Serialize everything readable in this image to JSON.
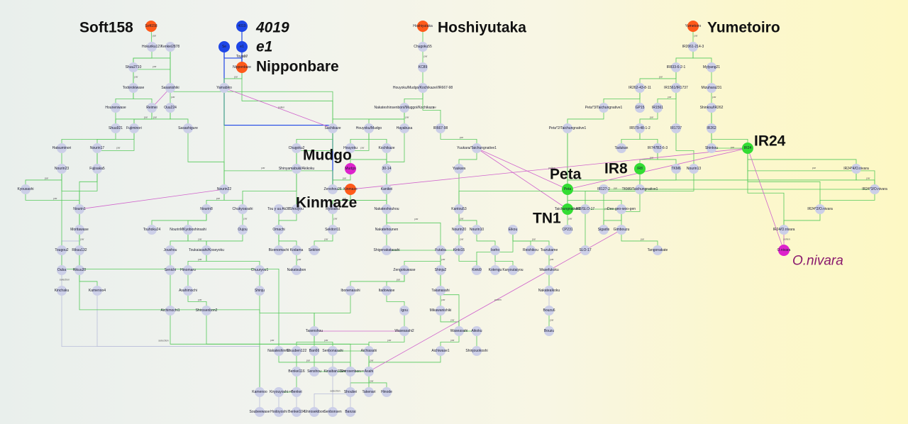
{
  "colors": {
    "parent": "#54c95a",
    "selection_mutation": "#b8bcd9",
    "pollen": "#d064cc",
    "highlight_orange": "#ff5a1a",
    "highlight_blue": "#1e46e6",
    "highlight_green": "#33dd33",
    "highlight_magenta": "#dd22cc",
    "node_default": "#cccfe8"
  },
  "big_labels": {
    "soft158": "Soft158",
    "v4019": "4019",
    "e1": "e1",
    "nipponbare": "Nipponbare",
    "hoshiyutaka": "Hoshiyutaka",
    "yumetoiro": "Yumetoiro",
    "mudgo": "Mudgo",
    "kinmaze": "Kinmaze",
    "peta": "Peta",
    "ir8": "IR8",
    "tn1": "TN1",
    "ir24": "IR24",
    "onivara": "O.nivara"
  },
  "nodes": [
    {
      "id": "Soft158",
      "label": "Soft158",
      "c": "orange"
    },
    {
      "id": "4019",
      "label": "4019",
      "c": "blue"
    },
    {
      "id": "e1",
      "label": "e1",
      "c": "blue"
    },
    {
      "id": "Se",
      "label": "Se",
      "c": "blue"
    },
    {
      "id": "Nipponbare",
      "label": "Nipponbare",
      "c": "orange"
    },
    {
      "id": "Toyo17",
      "label": "Toyo17",
      "c": "none"
    },
    {
      "id": "Hoshiyutaka",
      "label": "Hoshiyutaka",
      "c": "orange"
    },
    {
      "id": "Yumetoiro",
      "label": "Yumetoiro",
      "c": "orange"
    },
    {
      "id": "Hokuriku127",
      "label": "Hokuriku127"
    },
    {
      "id": "Kenkei2878",
      "label": "Kenkei2878"
    },
    {
      "id": "Shuu2710",
      "label": "Shuu2710"
    },
    {
      "id": "Todorokiwase",
      "label": "Todorokiwase"
    },
    {
      "id": "Sasanishiki",
      "label": "Sasanishiki"
    },
    {
      "id": "Hounenwase",
      "label": "Hounenwase"
    },
    {
      "id": "Reimei",
      "label": "Reimei"
    },
    {
      "id": "Ouu224",
      "label": "Ouu224"
    },
    {
      "id": "Shuu921",
      "label": "Shuu921"
    },
    {
      "id": "Fujiminori",
      "label": "Fujiminori"
    },
    {
      "id": "Sasashigure",
      "label": "Sasashigure"
    },
    {
      "id": "Yamabiko",
      "label": "Yamabiko"
    },
    {
      "id": "Hatsumi",
      "label": "Hatsuminori"
    },
    {
      "id": "Nourin17",
      "label": "Nourin17"
    },
    {
      "id": "Nourin23",
      "label": "Nourin23"
    },
    {
      "id": "Fujisaka5",
      "label": "Fujisaka5"
    },
    {
      "id": "Kyousashi",
      "label": "Kyousashi"
    },
    {
      "id": "Nourin1",
      "label": "Nourin1"
    },
    {
      "id": "Moritawase",
      "label": "Moritawase"
    },
    {
      "id": "Tougou2",
      "label": "Tougou2"
    },
    {
      "id": "Rikuu132",
      "label": "Rikuu132"
    },
    {
      "id": "Ouba",
      "label": "Ouba"
    },
    {
      "id": "Rikuu20",
      "label": "Rikuu20"
    },
    {
      "id": "Kinchaku",
      "label": "Kinchaku"
    },
    {
      "id": "Kamenoo4",
      "label": "Kamenoo4"
    },
    {
      "id": "Chugoku55",
      "label": "Chugoku55"
    },
    {
      "id": "KC89",
      "label": "KC89"
    },
    {
      "id": "HouyokuMK",
      "label": "Houyoku/Mudgo/Kochikaze//IR667-98"
    },
    {
      "id": "NakateMK",
      "label": "Nakateshinsenbon//Muggoi/Kochikaze"
    },
    {
      "id": "Sachikaze",
      "label": "Sachikaze"
    },
    {
      "id": "HouyokuMudgo",
      "label": "Houyoku/Mudgo"
    },
    {
      "id": "Hayabusa",
      "label": "Hayabusa"
    },
    {
      "id": "IR667",
      "label": "IR667-98"
    },
    {
      "id": "Chugoku2",
      "label": "Chugoku2"
    },
    {
      "id": "Houyoku",
      "label": "Houyoku"
    },
    {
      "id": "Kochikaze",
      "label": "Kochikaze"
    },
    {
      "id": "Mudgo",
      "label": "Mudgo",
      "c": "magenta"
    },
    {
      "id": "3014",
      "label": "30-14"
    },
    {
      "id": "Shinyamabuki",
      "label": "Shinyamabuki/Akikoku"
    },
    {
      "id": "Nourin22",
      "label": "Nourin22"
    },
    {
      "id": "Zenshou26",
      "label": "Zenshou26"
    },
    {
      "id": "Kinmaze",
      "label": "Kinmaze",
      "c": "orange"
    },
    {
      "id": "Kanikei",
      "label": "Kanikei"
    },
    {
      "id": "YuukaraT",
      "label": "Yuukara/Taichungnative1"
    },
    {
      "id": "Yuukara",
      "label": "Yuukara"
    },
    {
      "id": "Kantou53",
      "label": "Kantou53"
    },
    {
      "id": "Nourin8",
      "label": "Nourin8"
    },
    {
      "id": "Chukyoasahi",
      "label": "Chukyoasahi"
    },
    {
      "id": "TouyuuAk",
      "label": "Tou y uu Ak38"
    },
    {
      "id": "Shouyou",
      "label": "Shouyou"
    },
    {
      "id": "Ryosaku",
      "label": "Ryosaku"
    },
    {
      "id": "Nakateshouhou",
      "label": "Nakateshouhou"
    },
    {
      "id": "Touhoku24",
      "label": "Touhoku24"
    },
    {
      "id": "NourinMK",
      "label": "NourinMKyoboshinsahi"
    },
    {
      "id": "Oujou",
      "label": "Oujou"
    },
    {
      "id": "Omachi",
      "label": "Omachi"
    },
    {
      "id": "Sekitori11",
      "label": "Sekitori11"
    },
    {
      "id": "Nakatehounen",
      "label": "Nakatehounen"
    },
    {
      "id": "Nourin20",
      "label": "Nourin20"
    },
    {
      "id": "Nourin10",
      "label": "Nourin10"
    },
    {
      "id": "Eikou",
      "label": "Eikou"
    },
    {
      "id": "Bizenomachi",
      "label": "Bizenomachi"
    },
    {
      "id": "Kodama",
      "label": "Kodama"
    },
    {
      "id": "Sekitori",
      "label": "Sekitori"
    },
    {
      "id": "Shigenakatasahi",
      "label": "Shigenakatasahi"
    },
    {
      "id": "Futaba",
      "label": "Futaba"
    },
    {
      "id": "Kinki15",
      "label": "Kinki15"
    },
    {
      "id": "Iseho",
      "label": "Iseho"
    },
    {
      "id": "Reishikou",
      "label": "Reishikou"
    },
    {
      "id": "Tsurukame",
      "label": "Tsurukame"
    },
    {
      "id": "Joushou",
      "label": "Joushou"
    },
    {
      "id": "ToukaiK",
      "label": "Toukaiasahi/Koseyoku"
    },
    {
      "id": "Nakatsubon",
      "label": "Nakatsubon"
    },
    {
      "id": "Zengokuwase",
      "label": "Zengokuwase"
    },
    {
      "id": "Shinju2",
      "label": "Shinju2"
    },
    {
      "id": "Kinki9",
      "label": "Kinki9"
    },
    {
      "id": "Kotengu",
      "label": "Kotengu"
    },
    {
      "id": "Karyoutaiyou",
      "label": "Karyoutaiyou"
    },
    {
      "id": "Wasefukoku",
      "label": "Wasefukoku"
    },
    {
      "id": "Senichi",
      "label": "Senichi"
    },
    {
      "id": "Hinomaru",
      "label": "Hinomaru"
    },
    {
      "id": "Chuuryou1",
      "label": "Chuuryou1"
    },
    {
      "id": "Shinju",
      "label": "Shinju"
    },
    {
      "id": "Ibonenasahi",
      "label": "Ibonenasahi"
    },
    {
      "id": "Itadowase",
      "label": "Itadowase"
    },
    {
      "id": "Takanasahi",
      "label": "Takanasahi"
    },
    {
      "id": "Nakatealkoku",
      "label": "Nakatealkoku"
    },
    {
      "id": "Asahimochi",
      "label": "Asahimochi"
    },
    {
      "id": "Aichimochi1",
      "label": "Aichimochi1"
    },
    {
      "id": "Shirosenbon2",
      "label": "Shirosenbon2"
    },
    {
      "id": "Igou",
      "label": "Igou"
    },
    {
      "id": "Mikawanishiki",
      "label": "Mikawanishiki"
    },
    {
      "id": "Bouzu6",
      "label": "Bouzu6"
    },
    {
      "id": "Tasenshou",
      "label": "Tasenshou"
    },
    {
      "id": "Waseasahi2",
      "label": "Waseasahi2"
    },
    {
      "id": "Waseasahi",
      "label": "Waseasahi"
    },
    {
      "id": "Aikoku",
      "label": "Aikoku"
    },
    {
      "id": "Bouzu",
      "label": "Bouzu"
    },
    {
      "id": "Chuuben122",
      "label": "Chuuben122"
    },
    {
      "id": "Ban66",
      "label": "Ban66"
    },
    {
      "id": "Senbonasahi",
      "label": "Senbonasahi"
    },
    {
      "id": "Shinjouokoshi",
      "label": "Shinjouokoshi"
    },
    {
      "id": "Nakateshinriki",
      "label": "Nakateshinriki"
    },
    {
      "id": "Senshou",
      "label": "Senshou"
    },
    {
      "id": "Aichiasahi",
      "label": "Aichiasahi"
    },
    {
      "id": "Aichiwase1",
      "label": "Aichiwase1"
    },
    {
      "id": "Benkei116",
      "label": "Benkei116"
    },
    {
      "id": "Kinaiban33",
      "label": "Kinaiban33"
    },
    {
      "id": "Shirosenbon",
      "label": "Shirosenbon"
    },
    {
      "id": "Asahi",
      "label": "Asahi"
    },
    {
      "id": "Kamenoo",
      "label": "Kamenoo"
    },
    {
      "id": "Kiryouyoshi",
      "label": "Kiryouyoshi"
    },
    {
      "id": "Benkei",
      "label": "Benkei"
    },
    {
      "id": "Shoubei",
      "label": "Shoubei"
    },
    {
      "id": "Takenari",
      "label": "Takenari"
    },
    {
      "id": "Hinode",
      "label": "Hinode"
    },
    {
      "id": "Soubeewase",
      "label": "Soubeewase"
    },
    {
      "id": "Hodoyoshi",
      "label": "Hodoyoshi"
    },
    {
      "id": "Benkei104",
      "label": "Benkei104"
    },
    {
      "id": "Shirosekibon",
      "label": "Shirosekibon"
    },
    {
      "id": "Senbonsen",
      "label": "Senbonsen"
    },
    {
      "id": "Banzai",
      "label": "Banzai"
    },
    {
      "id": "IR2061",
      "label": "IR2061-214-3"
    },
    {
      "id": "IR833",
      "label": "IR833-6-2-1"
    },
    {
      "id": "Mylyang21",
      "label": "Mylyang21"
    },
    {
      "id": "IR262_43",
      "label": "IR262-43-8-11"
    },
    {
      "id": "IR1561_1737",
      "label": "IR1561/IR1737"
    },
    {
      "id": "Mizuhara231",
      "label": "Mizuhara231"
    },
    {
      "id": "PetaTai3",
      "label": "Peta*3/Taichungnative1"
    },
    {
      "id": "GP15",
      "label": "GP15"
    },
    {
      "id": "IR1561",
      "label": "IR1561"
    },
    {
      "id": "ShinkouIR262",
      "label": "Shinkou/IR262"
    },
    {
      "id": "PetaTai2",
      "label": "Peta*2/Taichungnative1"
    },
    {
      "id": "IR579",
      "label": "IR579-48-1-2"
    },
    {
      "id": "IR1737",
      "label": "IR1737"
    },
    {
      "id": "IR262",
      "label": "IR262"
    },
    {
      "id": "Tadukan",
      "label": "Tadukan"
    },
    {
      "id": "IR747",
      "label": "IR747B2-6-3"
    },
    {
      "id": "Shinkou",
      "label": "Shinkou"
    },
    {
      "id": "IR24",
      "label": "IR24",
      "c": "green"
    },
    {
      "id": "IR8",
      "label": "IR8",
      "c": "green"
    },
    {
      "id": "TKM6",
      "label": "TKM6"
    },
    {
      "id": "Nourin13",
      "label": "Nourin13"
    },
    {
      "id": "IR24x4",
      "label": "IR24*4/O.nivara"
    },
    {
      "id": "Peta",
      "label": "Peta",
      "c": "green"
    },
    {
      "id": "IR127",
      "label": "IR127-2"
    },
    {
      "id": "TKM6Tai",
      "label": "TKM6/Taichungnative1"
    },
    {
      "id": "IR24x3",
      "label": "IR24*3/O.nivara"
    },
    {
      "id": "TN1",
      "label": "Taichungnative1",
      "c": "green"
    },
    {
      "id": "IR8SLO",
      "label": "IR8/SLO-17"
    },
    {
      "id": "Deegeo",
      "label": "Dee-geo-woo-gen"
    },
    {
      "id": "IR24x2",
      "label": "IR24*2/O.nivara"
    },
    {
      "id": "CP231",
      "label": "CP231"
    },
    {
      "id": "Sigadis",
      "label": "Sigadis"
    },
    {
      "id": "Gimbouzu",
      "label": "Gimbouzu"
    },
    {
      "id": "IR24On",
      "label": "IR24/O.nivara"
    },
    {
      "id": "SLO17",
      "label": "SLO-17"
    },
    {
      "id": "Tangonakate",
      "label": "Tangonakate"
    },
    {
      "id": "Onivara",
      "label": "O.nivara",
      "c": "magenta"
    }
  ],
  "edge_labels": {
    "parent": "par",
    "pollen": "pollen",
    "selection": "selection",
    "mutation": "mutation",
    "emu": "EMU"
  }
}
